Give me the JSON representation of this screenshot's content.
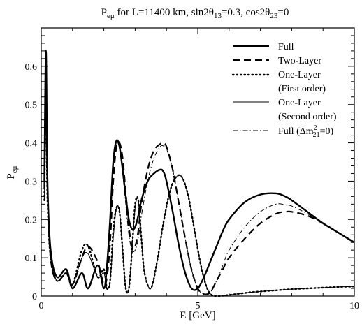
{
  "chart_data": {
    "type": "line",
    "title": "P_eμ for L=11400 km, sin2θ_13=0.3, cos2θ_23=0",
    "title_parts": {
      "p": "P",
      "p_sub": "eμ",
      "mid": " for L=11400 km, sin2θ",
      "sub1": "13",
      "mid2": "=0.3, cos2θ",
      "sub2": "23",
      "end": "=0"
    },
    "xlabel": "E [GeV]",
    "ylabel": "P",
    "ylabel_sub": "eμ",
    "xlim": [
      0,
      10
    ],
    "ylim": [
      0,
      0.7
    ],
    "xticks": [
      0,
      5,
      10
    ],
    "yticks": [
      0,
      0.1,
      0.2,
      0.3,
      0.4,
      0.5,
      0.6
    ],
    "ytick_labels": [
      "0",
      "0.1",
      "0.2",
      "0.3",
      "0.4",
      "0.5",
      "0.6"
    ],
    "grid": false,
    "legend_position": "top-right",
    "legend": {
      "full": "Full",
      "two_layer": "Two-Layer",
      "one_layer_first_1": "One-Layer",
      "one_layer_first_2": "(First order)",
      "one_layer_second_1": "One-Layer",
      "one_layer_second_2": "(Second order)",
      "full_dm_main": "Full (Δm",
      "full_dm_sup": "2",
      "full_dm_sub": "21",
      "full_dm_end": "=0)"
    },
    "series": [
      {
        "name": "Full",
        "style": "solid-thick",
        "x": [
          0.1,
          0.15,
          0.2,
          0.3,
          0.5,
          0.8,
          1.0,
          1.3,
          1.5,
          1.8,
          2.0,
          2.1,
          2.2,
          2.3,
          2.4,
          2.5,
          2.6,
          2.7,
          2.8,
          2.9,
          3.0,
          3.1,
          3.2,
          3.4,
          3.6,
          3.8,
          3.9,
          4.0,
          4.2,
          4.4,
          4.6,
          4.8,
          5.0,
          5.2,
          5.4,
          5.6,
          5.8,
          6.0,
          6.5,
          7.0,
          7.5,
          7.8,
          8.0,
          8.5,
          9.0,
          9.5,
          10.0
        ],
        "y": [
          0.3,
          0.64,
          0.3,
          0.12,
          0.05,
          0.07,
          0.02,
          0.06,
          0.02,
          0.08,
          0.02,
          0.08,
          0.2,
          0.35,
          0.405,
          0.39,
          0.33,
          0.26,
          0.2,
          0.175,
          0.18,
          0.21,
          0.25,
          0.3,
          0.32,
          0.33,
          0.325,
          0.3,
          0.22,
          0.13,
          0.06,
          0.02,
          0.02,
          0.05,
          0.09,
          0.13,
          0.17,
          0.2,
          0.245,
          0.265,
          0.268,
          0.26,
          0.25,
          0.22,
          0.19,
          0.165,
          0.14
        ]
      },
      {
        "name": "Two-Layer",
        "style": "dashed",
        "x": [
          0.1,
          0.15,
          0.2,
          0.3,
          0.5,
          0.8,
          1.0,
          1.3,
          1.5,
          1.8,
          2.0,
          2.1,
          2.2,
          2.3,
          2.4,
          2.5,
          2.6,
          2.7,
          2.8,
          2.9,
          3.0,
          3.1,
          3.2,
          3.4,
          3.6,
          3.8,
          3.9,
          4.0,
          4.2,
          4.4,
          4.6,
          4.8,
          5.0,
          5.2,
          5.4,
          5.6,
          5.8,
          6.0,
          6.5,
          7.0,
          7.5,
          7.8,
          8.0,
          8.5,
          9.0,
          9.5,
          10.0
        ],
        "y": [
          0.28,
          0.55,
          0.28,
          0.1,
          0.04,
          0.06,
          0.03,
          0.1,
          0.13,
          0.09,
          0.03,
          0.05,
          0.14,
          0.3,
          0.39,
          0.4,
          0.36,
          0.27,
          0.18,
          0.13,
          0.13,
          0.17,
          0.24,
          0.33,
          0.38,
          0.397,
          0.399,
          0.39,
          0.33,
          0.24,
          0.15,
          0.07,
          0.02,
          0.005,
          0.01,
          0.04,
          0.07,
          0.1,
          0.15,
          0.19,
          0.215,
          0.22,
          0.22,
          0.21,
          0.19,
          0.165,
          0.14
        ]
      },
      {
        "name": "One-Layer (First order)",
        "style": "dotted",
        "x": [
          0.1,
          0.15,
          0.2,
          0.3,
          0.5,
          0.8,
          1.0,
          1.3,
          1.5,
          1.8,
          2.0,
          2.1,
          2.2,
          2.3,
          2.4,
          2.5,
          2.6,
          2.7,
          2.8,
          2.9,
          3.0,
          3.1,
          3.2,
          3.3,
          3.5,
          3.7,
          3.9,
          4.1,
          4.3,
          4.5,
          4.7,
          4.9,
          5.1,
          5.3,
          5.5,
          5.7,
          5.9,
          6.1,
          6.3,
          6.5,
          6.7,
          7.0,
          7.5,
          8.0,
          8.5,
          9.0,
          9.5,
          10.0
        ],
        "y": [
          0.25,
          0.5,
          0.25,
          0.1,
          0.04,
          0.06,
          0.03,
          0.12,
          0.13,
          0.05,
          0.07,
          0.02,
          0.04,
          0.17,
          0.23,
          0.22,
          0.12,
          0.02,
          0.02,
          0.12,
          0.24,
          0.25,
          0.15,
          0.06,
          0.02,
          0.09,
          0.19,
          0.27,
          0.31,
          0.31,
          0.26,
          0.17,
          0.08,
          0.02,
          0.0,
          0.0,
          0.002,
          0.004,
          0.006,
          0.008,
          0.01,
          0.012,
          0.015,
          0.018,
          0.02,
          0.022,
          0.024,
          0.025
        ]
      },
      {
        "name": "One-Layer (Second order)",
        "style": "solid-thin",
        "x": [
          0.1,
          0.15,
          0.2,
          0.3,
          0.5,
          0.8,
          1.0,
          1.3,
          1.5,
          1.8,
          2.0,
          2.1,
          2.2,
          2.3,
          2.4,
          2.5,
          2.6,
          2.7,
          2.8,
          2.9,
          3.0,
          3.1,
          3.2,
          3.3,
          3.5,
          3.7,
          3.9,
          4.1,
          4.3,
          4.5,
          4.7,
          4.9,
          5.1,
          5.3,
          5.5,
          5.7,
          5.9,
          6.1,
          6.3,
          6.5,
          6.7,
          7.0,
          7.5,
          8.0,
          8.5,
          9.0,
          9.5,
          10.0
        ],
        "y": [
          0.25,
          0.5,
          0.25,
          0.1,
          0.04,
          0.06,
          0.03,
          0.1,
          0.11,
          0.05,
          0.06,
          0.02,
          0.04,
          0.15,
          0.23,
          0.22,
          0.12,
          0.02,
          0.02,
          0.12,
          0.23,
          0.25,
          0.15,
          0.06,
          0.02,
          0.09,
          0.19,
          0.27,
          0.31,
          0.31,
          0.26,
          0.17,
          0.08,
          0.02,
          0.0,
          0.0,
          0.002,
          0.004,
          0.006,
          0.008,
          0.01,
          0.012,
          0.015,
          0.018,
          0.02,
          0.022,
          0.024,
          0.025
        ]
      },
      {
        "name": "Full (Δm²₂₁=0)",
        "style": "dashdot",
        "x": [
          0.1,
          0.15,
          0.2,
          0.3,
          0.5,
          0.8,
          1.0,
          1.3,
          1.5,
          1.8,
          2.0,
          2.1,
          2.2,
          2.3,
          2.4,
          2.5,
          2.6,
          2.7,
          2.8,
          2.9,
          3.0,
          3.1,
          3.2,
          3.4,
          3.6,
          3.8,
          3.9,
          4.0,
          4.2,
          4.4,
          4.6,
          4.8,
          5.0,
          5.2,
          5.4,
          5.6,
          5.8,
          6.0,
          6.5,
          7.0,
          7.5,
          7.8,
          8.0,
          8.5,
          9.0,
          9.5,
          10.0
        ],
        "y": [
          0.3,
          0.62,
          0.3,
          0.12,
          0.05,
          0.07,
          0.02,
          0.06,
          0.02,
          0.08,
          0.02,
          0.08,
          0.2,
          0.34,
          0.4,
          0.385,
          0.32,
          0.24,
          0.16,
          0.12,
          0.12,
          0.15,
          0.21,
          0.3,
          0.36,
          0.39,
          0.392,
          0.385,
          0.33,
          0.24,
          0.15,
          0.07,
          0.02,
          0.005,
          0.01,
          0.04,
          0.08,
          0.12,
          0.18,
          0.22,
          0.24,
          0.238,
          0.235,
          0.215,
          0.19,
          0.165,
          0.14
        ]
      }
    ]
  }
}
